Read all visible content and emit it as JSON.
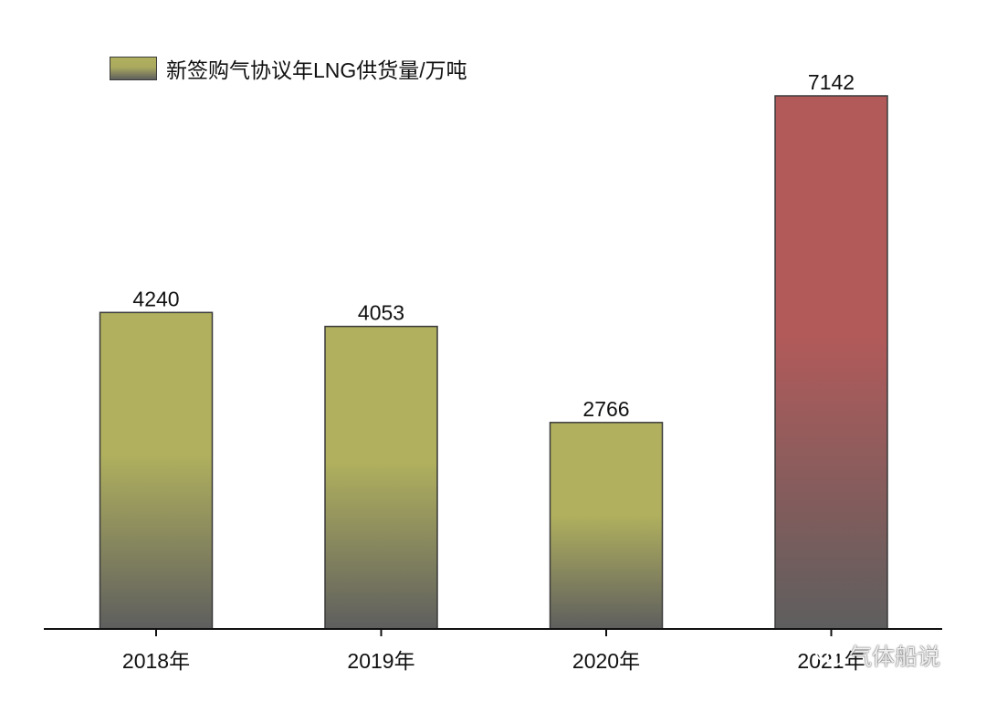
{
  "chart_data": {
    "type": "bar",
    "categories": [
      "2018年",
      "2019年",
      "2020年",
      "2021年"
    ],
    "values": [
      4240,
      4053,
      2766,
      7142
    ],
    "data_labels": [
      "4240",
      "4053",
      "2766",
      "7142"
    ],
    "series": [
      {
        "name": "新签购气协议年LNG供货量/万吨",
        "values": [
          4240,
          4053,
          2766,
          7142
        ]
      }
    ],
    "title": "",
    "xlabel": "",
    "ylabel": "",
    "ylim": [
      0,
      7142
    ],
    "grid": false,
    "legend_position": "top-left",
    "colors": {
      "default_top": "#b0b05e",
      "default_bottom": "#5e5e5e",
      "highlight_top": "#b25a5a",
      "highlight_bottom": "#5e5e5e",
      "axis": "#111111",
      "bar_edge": "#3a3a3a"
    },
    "highlight_index": 3
  },
  "watermark": {
    "text": "气体船说",
    "icon": "wechat-icon"
  }
}
